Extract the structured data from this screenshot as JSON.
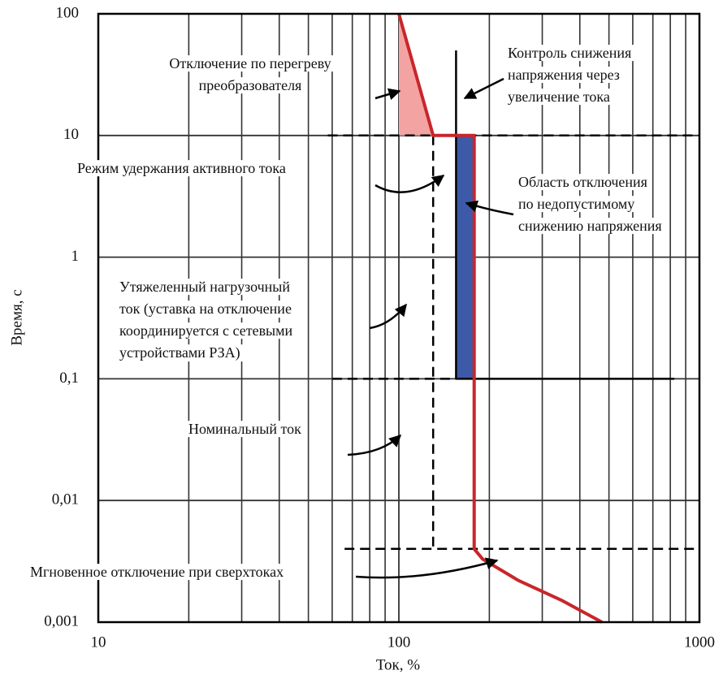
{
  "chart_data": {
    "type": "line",
    "xlabel": "Ток, %",
    "ylabel": "Время, с",
    "xlog": true,
    "ylog": true,
    "grid": true,
    "xlim": [
      10,
      1000
    ],
    "ylim": [
      0.001,
      100
    ],
    "xticks": [
      10,
      100,
      1000
    ],
    "xminorticks": [
      20,
      30,
      40,
      50,
      60,
      70,
      80,
      90,
      200,
      300,
      400,
      500,
      600,
      700,
      800,
      900
    ],
    "yticks": [
      {
        "value": 0.001,
        "label": "0,001"
      },
      {
        "value": 0.01,
        "label": "0,01"
      },
      {
        "value": 0.1,
        "label": "0,1"
      },
      1,
      10,
      100
    ],
    "series": [
      {
        "style": "fill",
        "color": "#f4a3a3",
        "x": [
          100,
          100,
          130
        ],
        "values": [
          100,
          10,
          10
        ]
      },
      {
        "style": "fill",
        "color": "#3d5aa8",
        "x": [
          155,
          178,
          178,
          155
        ],
        "values": [
          10,
          10,
          0.1,
          0.1
        ]
      },
      {
        "style": "dashed",
        "color": "#000000",
        "x": [
          58,
          1000
        ],
        "values": [
          10,
          10
        ]
      },
      {
        "style": "dashed",
        "color": "#000000",
        "x": [
          130,
          130
        ],
        "values": [
          10,
          0.004
        ]
      },
      {
        "style": "dashed",
        "color": "#000000",
        "x": [
          66,
          1000
        ],
        "values": [
          0.004,
          0.004
        ]
      },
      {
        "style": "dashed",
        "color": "#000000",
        "x": [
          60,
          155
        ],
        "values": [
          0.1,
          0.1
        ]
      },
      {
        "style": "solid",
        "color": "#000000",
        "x": [
          155,
          155,
          825
        ],
        "values": [
          50,
          0.1,
          0.1
        ]
      },
      {
        "style": "solid",
        "color": "#c8262b",
        "x": [
          100,
          130,
          178,
          178,
          190,
          250,
          350,
          474
        ],
        "values": [
          100,
          10,
          10,
          0.004,
          0.0033,
          0.0022,
          0.0015,
          0.001
        ]
      }
    ],
    "annotations": [
      [
        "Отключение по перегреву",
        "преобразователя"
      ],
      [
        "Контроль снижения",
        "напряжения через",
        "увеличение тока"
      ],
      [
        "Режим удержания активного тока"
      ],
      [
        "Область отключения",
        "по недопустимому",
        "снижению напряжения"
      ],
      [
        "Утяжеленный нагрузочный",
        "ток (уставка на отключение",
        "координируется с сетевыми",
        "устройствами РЗА)"
      ],
      [
        "Номинальный ток"
      ],
      [
        "Мгновенное отключение при сверхтоках"
      ]
    ]
  }
}
